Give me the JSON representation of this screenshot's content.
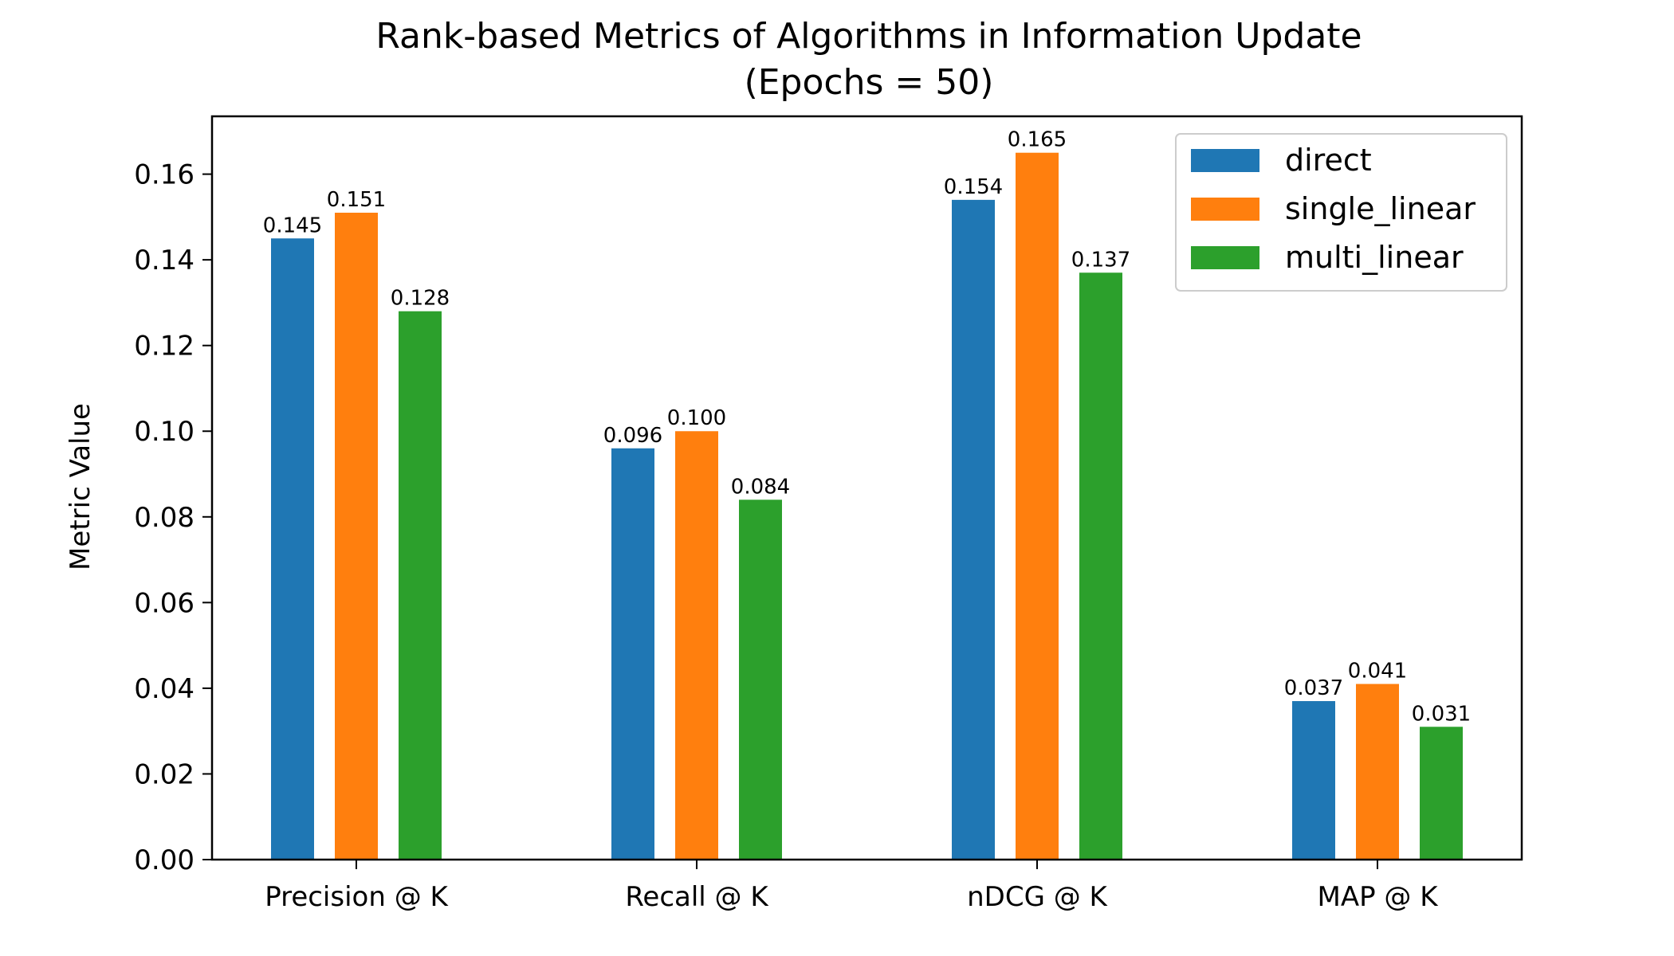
{
  "chart_data": {
    "type": "bar",
    "title": "Rank-based Metrics of Algorithms in Information Update",
    "subtitle": "(Epochs = 50)",
    "xlabel": "",
    "ylabel": "Metric Value",
    "categories": [
      "Precision @ K",
      "Recall @ K",
      "nDCG @ K",
      "MAP @ K"
    ],
    "series": [
      {
        "name": "direct",
        "color": "#1f77b4",
        "values": [
          0.145,
          0.096,
          0.154,
          0.037
        ],
        "labels": [
          "0.145",
          "0.096",
          "0.154",
          "0.037"
        ]
      },
      {
        "name": "single_linear",
        "color": "#ff7f0e",
        "values": [
          0.151,
          0.1,
          0.165,
          0.041
        ],
        "labels": [
          "0.151",
          "0.100",
          "0.165",
          "0.041"
        ]
      },
      {
        "name": "multi_linear",
        "color": "#2ca02c",
        "values": [
          0.128,
          0.084,
          0.137,
          0.031
        ],
        "labels": [
          "0.128",
          "0.084",
          "0.137",
          "0.031"
        ]
      }
    ],
    "ylim": [
      0,
      0.1735
    ],
    "yticks": [
      "0.00",
      "0.02",
      "0.04",
      "0.06",
      "0.08",
      "0.10",
      "0.12",
      "0.14",
      "0.16"
    ],
    "grid": false,
    "legend": "top-right"
  }
}
